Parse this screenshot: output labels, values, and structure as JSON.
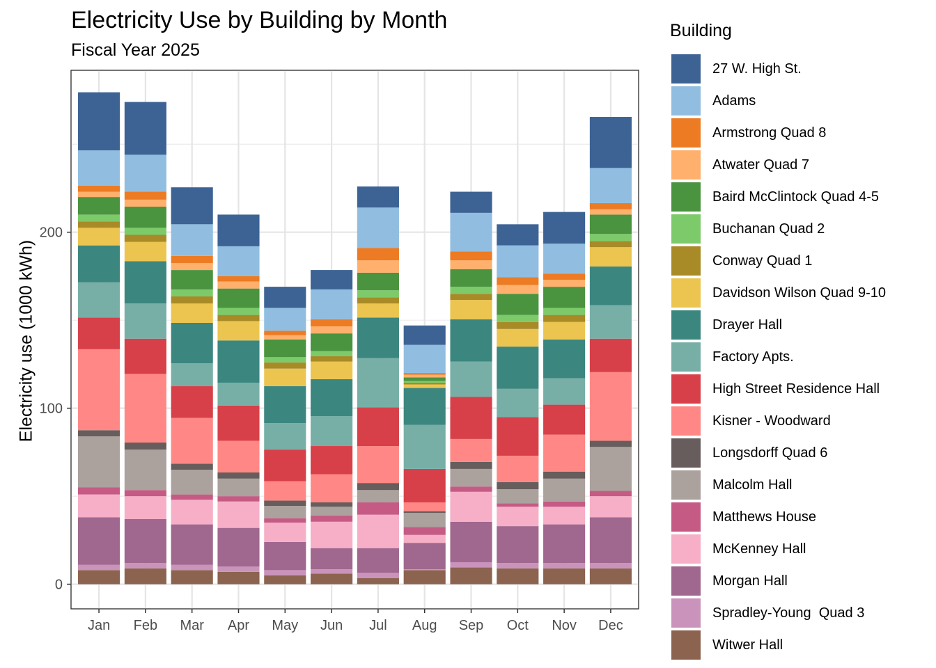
{
  "chart_data": {
    "type": "bar",
    "stacked": true,
    "title": "Electricity Use by Building by Month",
    "subtitle": "Fiscal Year 2025",
    "xlabel": "",
    "ylabel": "Electricity use (1000 kWh)",
    "ylim": [
      -14,
      292
    ],
    "yticks": [
      0,
      100,
      200
    ],
    "grid": true,
    "legend_title": "Building",
    "legend_position": "right",
    "categories": [
      "Jan",
      "Feb",
      "Mar",
      "Apr",
      "May",
      "Jun",
      "Jul",
      "Aug",
      "Sep",
      "Oct",
      "Nov",
      "Dec"
    ],
    "series": [
      {
        "name": "Witwer Hall",
        "color": "#8B634F",
        "values": [
          8,
          9,
          8,
          7,
          5,
          6,
          3.5,
          8,
          9.5,
          9,
          9,
          9
        ]
      },
      {
        "name": "Spradley-Young  Quad 3",
        "color": "#CA93BB",
        "values": [
          3,
          3,
          3,
          3,
          3,
          2.5,
          3,
          0.5,
          3,
          3,
          3,
          3
        ]
      },
      {
        "name": "Morgan Hall",
        "color": "#A0678F",
        "values": [
          27,
          25,
          23,
          22,
          16,
          12,
          14,
          15,
          23,
          21,
          22,
          26
        ]
      },
      {
        "name": "McKenney Hall",
        "color": "#F6AFC6",
        "values": [
          13,
          13,
          14,
          15,
          11,
          15,
          19,
          4.5,
          17,
          11,
          10,
          12
        ]
      },
      {
        "name": "Matthews House",
        "color": "#C55B84",
        "values": [
          4,
          3.5,
          3,
          3,
          2.5,
          3.5,
          7,
          4.5,
          3,
          2,
          3,
          3
        ]
      },
      {
        "name": "Malcolm Hall",
        "color": "#ABA19D",
        "values": [
          29,
          23,
          14,
          10,
          7,
          5,
          7,
          8,
          10,
          8,
          13,
          25
        ]
      },
      {
        "name": "Longsdorff Quad 6",
        "color": "#665D5C",
        "values": [
          3.5,
          4,
          3.5,
          3.5,
          3,
          2.5,
          4,
          1,
          4,
          4,
          4,
          3.5
        ]
      },
      {
        "name": "Kisner - Woodward",
        "color": "#FF8886",
        "values": [
          46,
          39,
          26,
          18,
          11,
          16,
          21,
          5,
          13,
          15,
          21,
          39
        ]
      },
      {
        "name": "High Street Residence Hall",
        "color": "#D74049",
        "values": [
          18,
          20,
          18,
          20,
          18,
          16,
          22,
          19,
          24,
          22,
          17,
          19
        ]
      },
      {
        "name": "Factory Apts.",
        "color": "#77AFA7",
        "values": [
          20,
          20,
          13,
          13,
          15,
          17,
          28,
          25,
          20,
          16,
          15,
          19
        ]
      },
      {
        "name": "Drayer Hall",
        "color": "#3C8680",
        "values": [
          21,
          24,
          23,
          24,
          21,
          21,
          23,
          21,
          24,
          24,
          22,
          22
        ]
      },
      {
        "name": "Davidson Wilson Quad 9-10",
        "color": "#EBC550",
        "values": [
          10,
          11,
          11,
          11,
          10,
          10,
          8,
          2,
          11,
          10,
          10,
          11
        ]
      },
      {
        "name": "Conway Quad 1",
        "color": "#A88A26",
        "values": [
          3.5,
          4,
          4,
          3.5,
          3.5,
          3,
          3.5,
          1,
          3.5,
          4,
          4,
          3.5
        ]
      },
      {
        "name": "Buchanan Quad 2",
        "color": "#7DCA6A",
        "values": [
          4,
          4,
          4,
          4,
          3,
          3,
          4,
          1,
          4,
          4,
          4,
          4
        ]
      },
      {
        "name": "Baird McClintock Quad 4-5",
        "color": "#4A933F",
        "values": [
          10,
          12,
          11,
          11,
          10,
          10,
          10,
          2,
          10,
          12,
          12,
          11
        ]
      },
      {
        "name": "Atwater Quad 7",
        "color": "#FFB06D",
        "values": [
          3,
          4,
          4,
          4,
          2.5,
          4,
          7,
          1.5,
          5,
          5,
          4,
          3
        ]
      },
      {
        "name": "Armstrong Quad 8",
        "color": "#EC7B23",
        "values": [
          3.5,
          4.5,
          4,
          3,
          2.5,
          4,
          7,
          1,
          5,
          4.5,
          3.5,
          3.5
        ]
      },
      {
        "name": "Adams",
        "color": "#91BEE0",
        "values": [
          20,
          21,
          18,
          17,
          13,
          17,
          23,
          16,
          22,
          18,
          17,
          20
        ]
      },
      {
        "name": "27 W. High St.",
        "color": "#3D6395",
        "values": [
          33,
          30,
          21,
          18,
          12,
          11,
          12,
          11,
          12,
          12,
          18,
          29
        ]
      }
    ]
  },
  "legend": [
    {
      "label": "27 W. High St.",
      "color": "#3D6395"
    },
    {
      "label": "Adams",
      "color": "#91BEE0"
    },
    {
      "label": "Armstrong Quad 8",
      "color": "#EC7B23"
    },
    {
      "label": "Atwater Quad 7",
      "color": "#FFB06D"
    },
    {
      "label": "Baird McClintock Quad 4-5",
      "color": "#4A933F"
    },
    {
      "label": "Buchanan Quad 2",
      "color": "#7DCA6A"
    },
    {
      "label": "Conway Quad 1",
      "color": "#A88A26"
    },
    {
      "label": "Davidson Wilson Quad 9-10",
      "color": "#EBC550"
    },
    {
      "label": "Drayer Hall",
      "color": "#3C8680"
    },
    {
      "label": "Factory Apts.",
      "color": "#77AFA7"
    },
    {
      "label": "High Street Residence Hall",
      "color": "#D74049"
    },
    {
      "label": "Kisner - Woodward",
      "color": "#FF8886"
    },
    {
      "label": "Longsdorff Quad 6",
      "color": "#665D5C"
    },
    {
      "label": "Malcolm Hall",
      "color": "#ABA19D"
    },
    {
      "label": "Matthews House",
      "color": "#C55B84"
    },
    {
      "label": "McKenney Hall",
      "color": "#F6AFC6"
    },
    {
      "label": "Morgan Hall",
      "color": "#A0678F"
    },
    {
      "label": "Spradley-Young  Quad 3",
      "color": "#CA93BB"
    },
    {
      "label": "Witwer Hall",
      "color": "#8B634F"
    }
  ]
}
